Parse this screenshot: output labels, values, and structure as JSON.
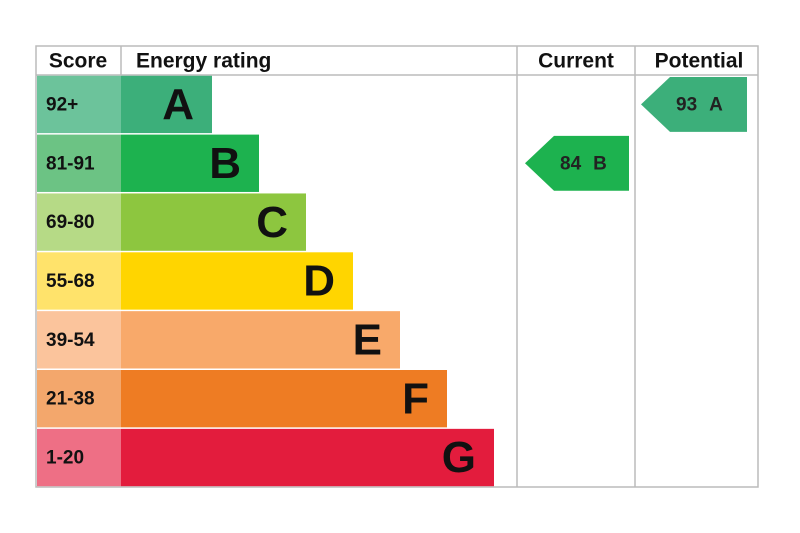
{
  "header": {
    "score": "Score",
    "rating": "Energy rating",
    "current": "Current",
    "potential": "Potential"
  },
  "rows": [
    {
      "score": "92+",
      "band": "A",
      "color": "#3caf7a",
      "score_color": "#6cc39b"
    },
    {
      "score": "81-91",
      "band": "B",
      "color": "#1db24f",
      "score_color": "#6cc384"
    },
    {
      "score": "69-80",
      "band": "C",
      "color": "#8dc63f",
      "score_color": "#b6da86"
    },
    {
      "score": "55-68",
      "band": "D",
      "color": "#ffd500",
      "score_color": "#ffe36b"
    },
    {
      "score": "39-54",
      "band": "E",
      "color": "#f8a96a",
      "score_color": "#fbc49c"
    },
    {
      "score": "21-38",
      "band": "F",
      "color": "#ee7c23",
      "score_color": "#f3a76c"
    },
    {
      "score": "1-20",
      "band": "G",
      "color": "#e31c3d",
      "score_color": "#ee6f85"
    }
  ],
  "current": {
    "value": 84,
    "band": "B"
  },
  "potential": {
    "value": 93,
    "band": "A"
  }
}
